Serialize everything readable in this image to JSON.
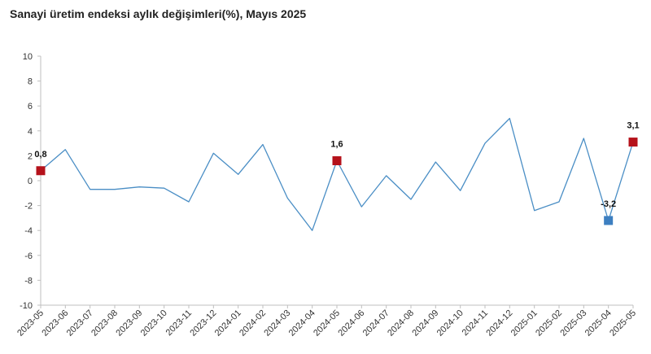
{
  "chart_data": {
    "type": "line",
    "title": "Sanayi üretim endeksi aylık değişimleri(%), Mayıs 2025",
    "xlabel": "",
    "ylabel": "",
    "ylim": [
      -10,
      10
    ],
    "yticks": [
      10,
      8,
      6,
      4,
      2,
      0,
      -2,
      -4,
      -6,
      -8,
      -10
    ],
    "grid": false,
    "legend": "none",
    "x": [
      "2023-05",
      "2023-06",
      "2023-07",
      "2023-08",
      "2023-09",
      "2023-10",
      "2023-11",
      "2023-12",
      "2024-01",
      "2024-02",
      "2024-03",
      "2024-04",
      "2024-05",
      "2024-06",
      "2024-07",
      "2024-08",
      "2024-09",
      "2024-10",
      "2024-11",
      "2024-12",
      "2025-01",
      "2025-02",
      "2025-03",
      "2025-04",
      "2025-05"
    ],
    "series": [
      {
        "values": [
          0.8,
          2.5,
          -0.7,
          -0.7,
          -0.5,
          -0.6,
          -1.7,
          2.2,
          0.5,
          2.9,
          -1.4,
          -4.0,
          1.6,
          -2.1,
          0.4,
          -1.5,
          1.5,
          -0.8,
          3.0,
          5.0,
          -2.4,
          -1.7,
          3.4,
          -3.2,
          3.1
        ],
        "color": "#4a8ec5"
      }
    ],
    "highlights": [
      {
        "index": 0,
        "label": "0,8",
        "color": "#b5121b",
        "label_position": "above"
      },
      {
        "index": 12,
        "label": "1,6",
        "color": "#b5121b",
        "label_position": "above"
      },
      {
        "index": 23,
        "label": "-3,2",
        "color": "#3d7fc1",
        "label_position": "above"
      },
      {
        "index": 24,
        "label": "3,1",
        "color": "#b5121b",
        "label_position": "above"
      }
    ],
    "axis_color": "#bfbfbf"
  }
}
